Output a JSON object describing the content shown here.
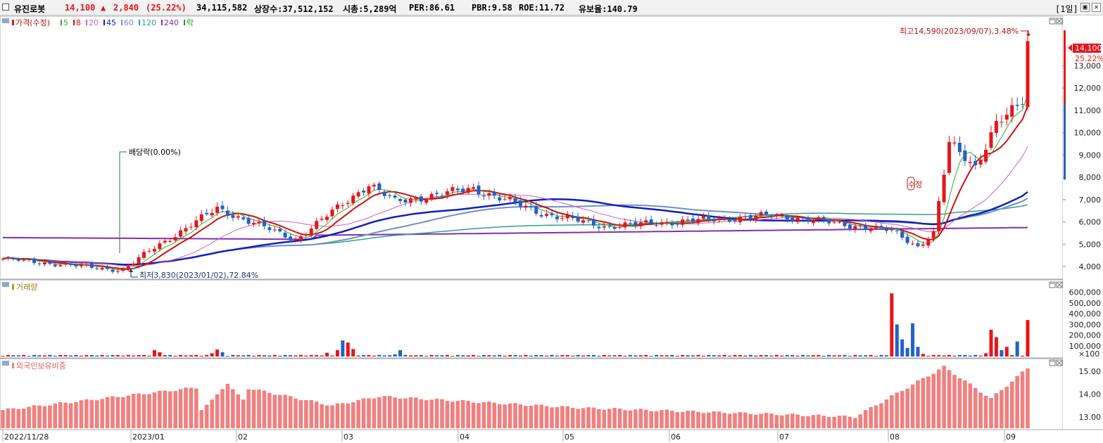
{
  "header": {
    "name": "유진로봇",
    "price": "14,100",
    "change_arrow": "▲",
    "change": "2,840",
    "change_pct": "(25.22%)",
    "volume": "34,115,582",
    "shares": "상장수:37,512,152",
    "mcap": "시총:5,289억",
    "per": "PER:86.61",
    "pbr": "PBR:9.58",
    "roe": "ROE:11.72",
    "reserve": "유보율:140.79",
    "period": "[1일]"
  },
  "colors": {
    "up": "#e8141c",
    "down": "#2460c8",
    "ma5": "#30b030",
    "ma8": "#d01010",
    "ma20": "#d060c0",
    "ma45": "#1020c0",
    "ma60": "#7090c0",
    "ma120": "#30a090",
    "ma240": "#8030b0"
  },
  "legend": {
    "price": {
      "label": "가격(수정)",
      "items": [
        "5",
        "8",
        "20",
        "45",
        "60",
        "120",
        "240",
        "락"
      ]
    },
    "volume": "거래량",
    "foreign": "외국인보유비중"
  },
  "annotations": {
    "high": "최고14,590(2023/09/07),3.48%",
    "low": "최저3,830(2023/01/02),72.84%",
    "dividend": "배당락(0.00%)",
    "splitmark": "수정",
    "last_price_tag": "14,100",
    "last_pct_tag": "25.22%",
    "volume_unit": "×100"
  },
  "chart_data": [
    {
      "type": "candlestick",
      "title": "가격(수정)",
      "y_ticks": [
        "13,000",
        "12,000",
        "11,000",
        "10,000",
        "9,000",
        "8,000",
        "7,000",
        "6,000",
        "5,000",
        "4,000"
      ],
      "ylim": [
        3500,
        15000
      ],
      "x_labels": [
        "2022/11/28",
        "2023/01",
        "02",
        "03",
        "04",
        "05",
        "06",
        "07",
        "08",
        "09"
      ],
      "close_keypoints": [
        {
          "date": "2022/11/28",
          "value": 4350
        },
        {
          "date": "2023/01/02",
          "value": 3830
        },
        {
          "date": "2023/01 mid",
          "value": 4700
        },
        {
          "date": "2023/02 early",
          "value": 6600
        },
        {
          "date": "2023/02 late",
          "value": 5200
        },
        {
          "date": "2023/03 early",
          "value": 7700
        },
        {
          "date": "2023/03 mid",
          "value": 6900
        },
        {
          "date": "2023/03 late",
          "value": 7500
        },
        {
          "date": "2023/04",
          "value": 6400
        },
        {
          "date": "2023/05",
          "value": 5800
        },
        {
          "date": "2023/06",
          "value": 6300
        },
        {
          "date": "2023/07",
          "value": 5600
        },
        {
          "date": "2023/07 late",
          "value": 4900
        },
        {
          "date": "2023/08 early",
          "value": 5500
        },
        {
          "date": "2023/08 mid",
          "value": 9500
        },
        {
          "date": "2023/08 late",
          "value": 8500
        },
        {
          "date": "2023/09 early",
          "value": 10400
        },
        {
          "date": "2023/09/06",
          "value": 11260
        },
        {
          "date": "2023/09/07",
          "value": 14100
        }
      ],
      "high": 14590,
      "low": 3830
    },
    {
      "type": "bar",
      "title": "거래량",
      "unit": "×100",
      "y_ticks": [
        "600,000",
        "500,000",
        "400,000",
        "300,000",
        "200,000",
        "100,000"
      ],
      "spikes": [
        {
          "date": "2023/01 mid",
          "value": 60000
        },
        {
          "date": "2023/02",
          "value": 65000
        },
        {
          "date": "2023/03 early",
          "value": 150000
        },
        {
          "date": "2023/08 mid",
          "value": 600000
        },
        {
          "date": "2023/08 mid",
          "value": 300000
        },
        {
          "date": "2023/08 late",
          "value": 160000
        },
        {
          "date": "2023/09 early",
          "value": 250000
        },
        {
          "date": "2023/09/07",
          "value": 341000
        }
      ]
    },
    {
      "type": "bar",
      "title": "외국인보유비중",
      "y_ticks": [
        "15.00",
        "14.00",
        "13.00"
      ],
      "ylim": [
        12.5,
        15.5
      ],
      "keypoints": [
        {
          "date": "2022/11/28",
          "value": 13.3
        },
        {
          "date": "2023/02 early",
          "value": 14.45
        },
        {
          "date": "2023/03 early",
          "value": 13.5
        },
        {
          "date": "2023/03 mid",
          "value": 13.9
        },
        {
          "date": "2023/05 late",
          "value": 13.4
        },
        {
          "date": "2023/08 early",
          "value": 13.0
        },
        {
          "date": "2023/08 late",
          "value": 15.2
        },
        {
          "date": "2023/09 early",
          "value": 13.8
        },
        {
          "date": "2023/09/07",
          "value": 15.15
        }
      ]
    }
  ]
}
